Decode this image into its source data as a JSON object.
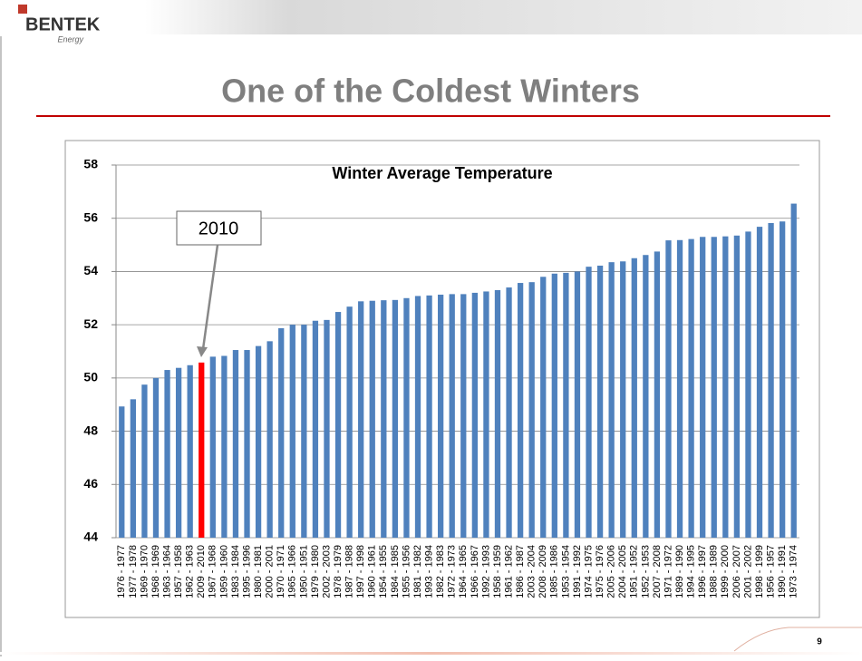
{
  "slide": {
    "logo": "BENTEK",
    "logo_sub": "Energy",
    "title": "One of the Coldest Winters",
    "page_number": 9
  },
  "chart_data": {
    "type": "bar",
    "title": "Winter Average Temperature",
    "categories": [
      "1976 - 1977",
      "1977 - 1978",
      "1969 - 1970",
      "1968 - 1969",
      "1963 - 1964",
      "1957 - 1958",
      "1962 - 1963",
      "2009 - 2010",
      "1967 - 1968",
      "1959 - 1960",
      "1983 - 1984",
      "1995 - 1996",
      "1980 - 1981",
      "2000 - 2001",
      "1970 - 1971",
      "1965 - 1966",
      "1950 - 1951",
      "1979 - 1980",
      "2002 - 2003",
      "1978 - 1979",
      "1987 - 1988",
      "1997 - 1998",
      "1960 - 1961",
      "1954 - 1955",
      "1984 - 1985",
      "1955 - 1956",
      "1981 - 1982",
      "1993 - 1994",
      "1982 - 1983",
      "1972 - 1973",
      "1964 - 1965",
      "1966 - 1967",
      "1992 - 1993",
      "1958 - 1959",
      "1961 - 1962",
      "1986 - 1987",
      "2003 - 2004",
      "2008 - 2009",
      "1985 - 1986",
      "1953 - 1954",
      "1991 - 1992",
      "1974 - 1975",
      "1975 - 1976",
      "2005 - 2006",
      "2004 - 2005",
      "1951 - 1952",
      "1952 - 1953",
      "2007 - 2008",
      "1971 - 1972",
      "1989 - 1990",
      "1994 - 1995",
      "1996 - 1997",
      "1988 - 1989",
      "1999 - 2000",
      "2006 - 2007",
      "2001 - 2002",
      "1998 - 1999",
      "1956 - 1957",
      "1990 - 1991",
      "1973 - 1974"
    ],
    "values": [
      48.93,
      49.2,
      49.75,
      50.0,
      50.3,
      50.38,
      50.48,
      50.58,
      50.8,
      50.83,
      51.05,
      51.05,
      51.2,
      51.38,
      51.87,
      52.0,
      52.0,
      52.15,
      52.18,
      52.48,
      52.68,
      52.88,
      52.9,
      52.92,
      52.93,
      53.0,
      53.08,
      53.1,
      53.13,
      53.15,
      53.15,
      53.2,
      53.25,
      53.3,
      53.4,
      53.57,
      53.6,
      53.8,
      53.92,
      53.95,
      54.0,
      54.18,
      54.22,
      54.35,
      54.38,
      54.5,
      54.62,
      54.75,
      55.17,
      55.18,
      55.22,
      55.3,
      55.3,
      55.32,
      55.35,
      55.5,
      55.68,
      55.82,
      55.88,
      56.55
    ],
    "bar_colors": [
      "#4f81bd",
      "#4f81bd",
      "#4f81bd",
      "#4f81bd",
      "#4f81bd",
      "#4f81bd",
      "#4f81bd",
      "#ff0000",
      "#4f81bd",
      "#4f81bd",
      "#4f81bd",
      "#4f81bd",
      "#4f81bd",
      "#4f81bd",
      "#4f81bd",
      "#4f81bd",
      "#4f81bd",
      "#4f81bd",
      "#4f81bd",
      "#4f81bd",
      "#4f81bd",
      "#4f81bd",
      "#4f81bd",
      "#4f81bd",
      "#4f81bd",
      "#4f81bd",
      "#4f81bd",
      "#4f81bd",
      "#4f81bd",
      "#4f81bd",
      "#4f81bd",
      "#4f81bd",
      "#4f81bd",
      "#4f81bd",
      "#4f81bd",
      "#4f81bd",
      "#4f81bd",
      "#4f81bd",
      "#4f81bd",
      "#4f81bd",
      "#4f81bd",
      "#4f81bd",
      "#4f81bd",
      "#4f81bd",
      "#4f81bd",
      "#4f81bd",
      "#4f81bd",
      "#4f81bd",
      "#4f81bd",
      "#4f81bd",
      "#4f81bd",
      "#4f81bd",
      "#4f81bd",
      "#4f81bd",
      "#4f81bd",
      "#4f81bd",
      "#4f81bd",
      "#4f81bd",
      "#4f81bd",
      "#4f81bd"
    ],
    "annotation": "2010",
    "ylim": [
      44,
      58
    ],
    "yticks": [
      44,
      46,
      48,
      50,
      52,
      54,
      56,
      58
    ],
    "grid": true
  }
}
